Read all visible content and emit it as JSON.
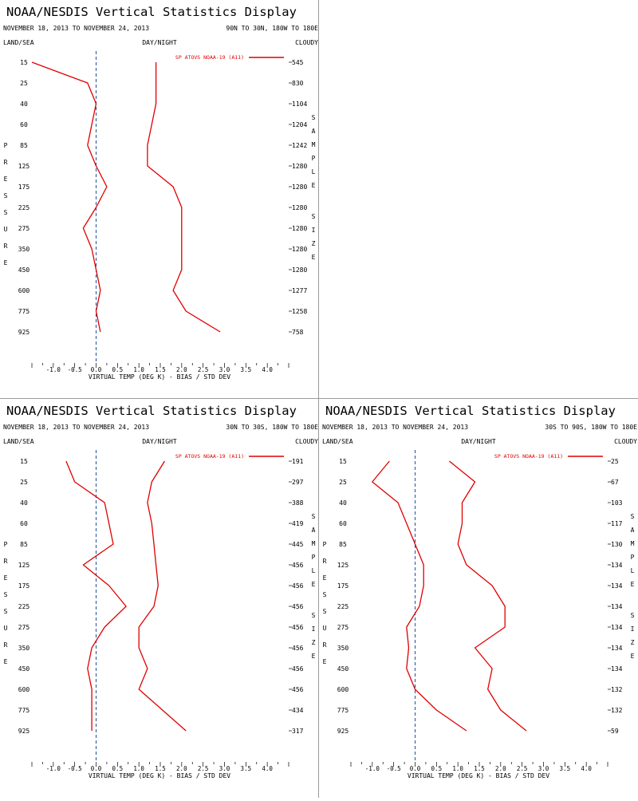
{
  "title": "NOAA/NESDIS Vertical Statistics Display",
  "colors": {
    "series": "#e00000",
    "zero_line": "#2050a0",
    "text": "#000000"
  },
  "labels": {
    "land_sea": "LAND/SEA",
    "day_night": "DAY/NIGHT",
    "cloudy": "CLOUDY",
    "pressure_letters": [
      "P",
      "R",
      "E",
      "S",
      "S",
      "U",
      "R",
      "E"
    ],
    "sample_letters": [
      "S",
      "A",
      "M",
      "P",
      "L",
      "E"
    ],
    "size_letters": [
      "S",
      "I",
      "Z",
      "E"
    ]
  },
  "chart_data": [
    {
      "type": "line",
      "date_range": "NOVEMBER 18, 2013 TO NOVEMBER 24, 2013",
      "region": "90N TO 30N, 180W TO 180E",
      "legend": "SP ATOVS NOAA-19 (A11)",
      "xlabel": "VIRTUAL TEMP (DEG K) - BIAS / STD DEV",
      "ylabel": "PRESSURE",
      "xlim": [
        -1.5,
        4.5
      ],
      "x_ticks": [
        "-1.0",
        "-0.5",
        "0.0",
        "0.5",
        "1.0",
        "1.5",
        "2.0",
        "2.5",
        "3.0",
        "3.5",
        "4.0"
      ],
      "pressure_levels": [
        15,
        25,
        40,
        60,
        85,
        125,
        175,
        225,
        275,
        350,
        450,
        600,
        775,
        925
      ],
      "sample_size": [
        545,
        830,
        1104,
        1204,
        1242,
        1280,
        1280,
        1280,
        1280,
        1280,
        1280,
        1277,
        1258,
        758
      ],
      "series": [
        {
          "name": "bias",
          "values": [
            -1.5,
            -0.2,
            0.0,
            -0.1,
            -0.2,
            0.0,
            0.25,
            0.0,
            -0.3,
            -0.1,
            0.0,
            0.1,
            0.0,
            0.1
          ]
        },
        {
          "name": "std_dev",
          "values": [
            1.4,
            1.4,
            1.4,
            1.3,
            1.2,
            1.2,
            1.8,
            2.0,
            2.0,
            2.0,
            2.0,
            1.8,
            2.1,
            2.9
          ]
        }
      ]
    },
    {
      "type": "line",
      "date_range": "NOVEMBER 18, 2013 TO NOVEMBER 24, 2013",
      "region": "30N TO 30S, 180W TO 180E",
      "legend": "SP ATOVS NOAA-19 (A11)",
      "xlabel": "VIRTUAL TEMP (DEG K) - BIAS / STD DEV",
      "ylabel": "PRESSURE",
      "xlim": [
        -1.5,
        4.5
      ],
      "x_ticks": [
        "-1.0",
        "-0.5",
        "0.0",
        "0.5",
        "1.0",
        "1.5",
        "2.0",
        "2.5",
        "3.0",
        "3.5",
        "4.0"
      ],
      "pressure_levels": [
        15,
        25,
        40,
        60,
        85,
        125,
        175,
        225,
        275,
        350,
        450,
        600,
        775,
        925
      ],
      "sample_size": [
        191,
        297,
        388,
        419,
        445,
        456,
        456,
        456,
        456,
        456,
        456,
        456,
        434,
        317
      ],
      "series": [
        {
          "name": "bias",
          "values": [
            -0.7,
            -0.5,
            0.2,
            0.3,
            0.4,
            -0.3,
            0.3,
            0.7,
            0.2,
            -0.1,
            -0.2,
            -0.1,
            -0.1,
            -0.1
          ]
        },
        {
          "name": "std_dev",
          "values": [
            1.6,
            1.3,
            1.2,
            1.3,
            1.35,
            1.4,
            1.45,
            1.35,
            1.0,
            1.0,
            1.2,
            1.0,
            1.55,
            2.1
          ]
        }
      ]
    },
    {
      "type": "line",
      "date_range": "NOVEMBER 18, 2013 TO NOVEMBER 24, 2013",
      "region": "30S TO 90S, 180W TO 180E",
      "legend": "SP ATOVS NOAA-19 (A11)",
      "xlabel": "VIRTUAL TEMP (DEG K) - BIAS / STD DEV",
      "ylabel": "PRESSURE",
      "xlim": [
        -1.5,
        4.5
      ],
      "x_ticks": [
        "-1.0",
        "-0.5",
        "0.0",
        "0.5",
        "1.0",
        "1.5",
        "2.0",
        "2.5",
        "3.0",
        "3.5",
        "4.0"
      ],
      "pressure_levels": [
        15,
        25,
        40,
        60,
        85,
        125,
        175,
        225,
        275,
        350,
        450,
        600,
        775,
        925
      ],
      "sample_size": [
        25,
        67,
        103,
        117,
        130,
        134,
        134,
        134,
        134,
        134,
        134,
        132,
        132,
        59
      ],
      "series": [
        {
          "name": "bias",
          "values": [
            -0.6,
            -1.0,
            -0.4,
            -0.2,
            0.0,
            0.2,
            0.2,
            0.1,
            -0.2,
            -0.15,
            -0.2,
            0.0,
            0.5,
            1.2
          ]
        },
        {
          "name": "std_dev",
          "values": [
            0.8,
            1.4,
            1.1,
            1.1,
            1.0,
            1.2,
            1.8,
            2.1,
            2.1,
            1.4,
            1.8,
            1.7,
            2.0,
            2.6
          ]
        }
      ]
    }
  ]
}
